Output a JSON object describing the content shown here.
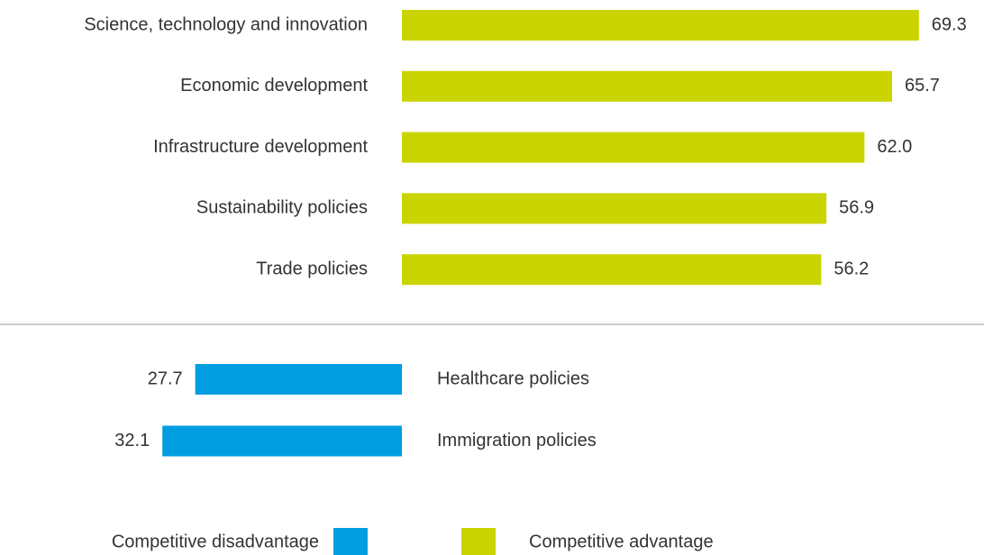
{
  "chart_data": {
    "type": "bar",
    "series": [
      {
        "name": "Competitive advantage",
        "color": "#cad400",
        "categories": [
          "Science, technology and innovation",
          "Economic development",
          "Infrastructure development",
          "Sustainability policies",
          "Trade policies"
        ],
        "values": [
          69.3,
          65.7,
          62.0,
          56.9,
          56.2
        ],
        "value_labels": [
          "69.3",
          "65.7",
          "62.0",
          "56.9",
          "56.2"
        ]
      },
      {
        "name": "Competitive disadvantage",
        "color": "#009ee0",
        "categories": [
          "Healthcare policies",
          "Immigration policies"
        ],
        "values": [
          27.7,
          32.1
        ],
        "value_labels": [
          "27.7",
          "32.1"
        ]
      }
    ]
  }
}
